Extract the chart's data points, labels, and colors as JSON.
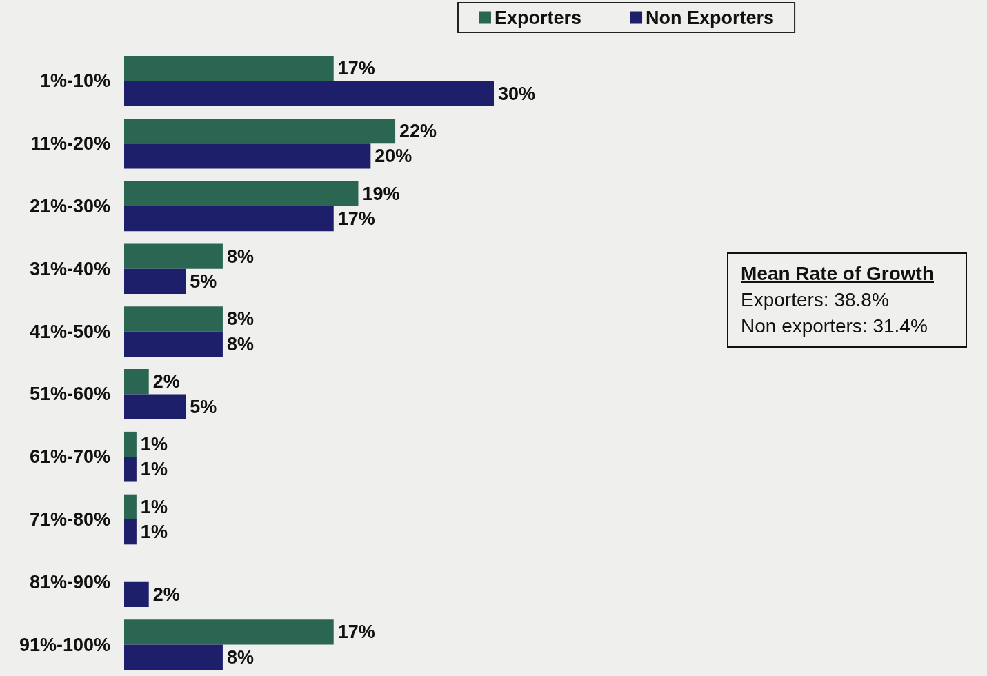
{
  "chart_data": {
    "type": "bar",
    "orientation": "horizontal",
    "categories": [
      "1%-10%",
      "11%-20%",
      "21%-30%",
      "31%-40%",
      "41%-50%",
      "51%-60%",
      "61%-70%",
      "71%-80%",
      "81%-90%",
      "91%-100%"
    ],
    "series": [
      {
        "name": "Exporters",
        "color": "#2b6652",
        "values": [
          17,
          22,
          19,
          8,
          8,
          2,
          1,
          1,
          null,
          17
        ],
        "value_labels": [
          "17%",
          "22%",
          "19%",
          "8%",
          "8%",
          "2%",
          "1%",
          "1%",
          null,
          "17%"
        ]
      },
      {
        "name": "Non Exporters",
        "color": "#1e1f6a",
        "values": [
          30,
          20,
          17,
          5,
          8,
          5,
          1,
          1,
          2,
          8
        ],
        "value_labels": [
          "30%",
          "20%",
          "17%",
          "5%",
          "8%",
          "5%",
          "1%",
          "1%",
          "2%",
          "8%"
        ]
      }
    ],
    "legend": "top",
    "annotations": [
      "Mean Rate of Growth",
      "Exporters: 38.8%",
      "Non exporters: 31.4%"
    ]
  }
}
